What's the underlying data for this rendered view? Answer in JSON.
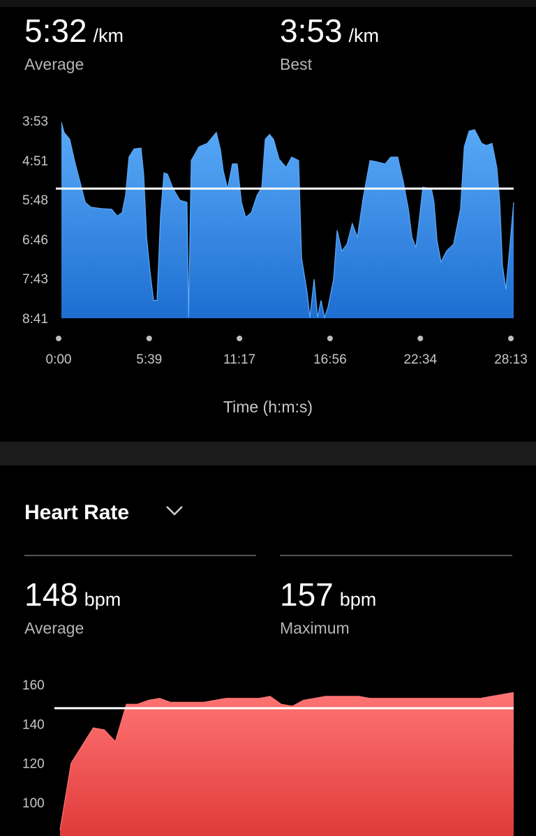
{
  "pace": {
    "stats": [
      {
        "value": {
          "value": 332,
          "label": "5:32"
        },
        "unit": "/km",
        "label": "Average"
      },
      {
        "value": "3:53",
        "unit": "/km",
        "label": "Best"
      }
    ],
    "chart": {
      "type": "area",
      "x": [
        0,
        10,
        31,
        52,
        71,
        89,
        110,
        149,
        188,
        209,
        227,
        240,
        253,
        272,
        298,
        308,
        319,
        332,
        345,
        358,
        371,
        384,
        397,
        418,
        444,
        470,
        476,
        486,
        515,
        546,
        580,
        596,
        606,
        622,
        640,
        658,
        674,
        690,
        711,
        732,
        750,
        763,
        779,
        794,
        815,
        841,
        862,
        888,
        899,
        920,
        930,
        946,
        959,
        972,
        985,
        998,
        1019,
        1032,
        1050,
        1069,
        1089,
        1108,
        1129,
        1155,
        1181,
        1212,
        1233,
        1259,
        1280,
        1299,
        1312,
        1327,
        1338,
        1353,
        1385,
        1395,
        1406,
        1421,
        1442,
        1468,
        1494,
        1508,
        1526,
        1547,
        1573,
        1591,
        1612,
        1630,
        1641,
        1651,
        1664,
        1677,
        1693
      ],
      "values": [
        235,
        250,
        260,
        296,
        324,
        352,
        359,
        361,
        362,
        372,
        367,
        342,
        286,
        274,
        273,
        311,
        403,
        454,
        495,
        495,
        372,
        309,
        311,
        332,
        349,
        352,
        520,
        291,
        271,
        266,
        250,
        276,
        306,
        332,
        296,
        296,
        352,
        374,
        367,
        342,
        330,
        260,
        253,
        260,
        289,
        301,
        286,
        291,
        433,
        484,
        520,
        464,
        520,
        495,
        520,
        505,
        464,
        393,
        423,
        413,
        383,
        403,
        347,
        291,
        293,
        296,
        286,
        286,
        322,
        362,
        403,
        418,
        383,
        330,
        332,
        352,
        408,
        439,
        423,
        413,
        362,
        271,
        248,
        246,
        266,
        269,
        266,
        301,
        352,
        444,
        479,
        423,
        352
      ],
      "xlim": [
        0,
        1693
      ],
      "ylim": [
        521,
        233
      ],
      "xticks": [
        {
          "value": 0,
          "label": "0:00"
        },
        {
          "value": 339,
          "label": "5:39"
        },
        {
          "value": 677,
          "label": "11:17"
        },
        {
          "value": 1016,
          "label": "16:56"
        },
        {
          "value": 1354,
          "label": "22:34"
        },
        {
          "value": 1693,
          "label": "28:13"
        }
      ],
      "yticks": [
        {
          "value": 233,
          "label": "3:53"
        },
        {
          "value": 291,
          "label": "4:51"
        },
        {
          "value": 348,
          "label": "5:48"
        },
        {
          "value": 406,
          "label": "6:46"
        },
        {
          "value": 463,
          "label": "7:43"
        },
        {
          "value": 521,
          "label": "8:41"
        }
      ],
      "x_label": "Time (h:m:s)",
      "gradient": [
        "#5aaaf8",
        "#1e6ed2"
      ]
    }
  },
  "heart_rate": {
    "title": "Heart Rate",
    "stats": [
      {
        "value": 148,
        "unit": "bpm",
        "label": "Average"
      },
      {
        "value": 157,
        "unit": "bpm",
        "label": "Maximum"
      }
    ],
    "chart": {
      "type": "area",
      "values": [
        86,
        120,
        129,
        138,
        137,
        131,
        150,
        150,
        152,
        153,
        151,
        151,
        151,
        151,
        152,
        153,
        153,
        153,
        153,
        154,
        150,
        149,
        152,
        153,
        154,
        154,
        154,
        154,
        153,
        153,
        153,
        153,
        153,
        153,
        153,
        153,
        153,
        153,
        153,
        154,
        155,
        156
      ],
      "ylim": [
        83,
        160
      ],
      "yticks": [
        100,
        120,
        140,
        160
      ],
      "gradient": [
        "#ff7474",
        "#e03a3a"
      ]
    }
  }
}
